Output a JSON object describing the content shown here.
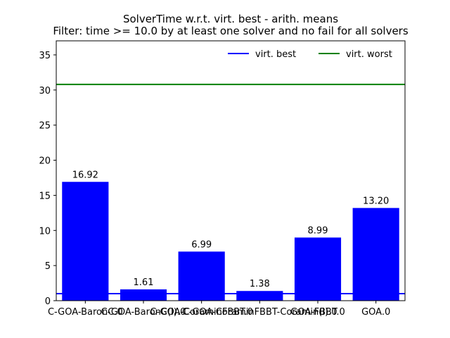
{
  "chart_data": {
    "type": "bar",
    "title_line1": "SolverTime w.r.t. virt. best - arith. means",
    "title_line2": "Filter: time >= 10.0 by at least one solver and no fail for all solvers",
    "xlabel": "",
    "ylabel": "",
    "categories": [
      "C-GOA-BaronC.0",
      "C-GOA-BaronC(I).0",
      "C-GOA-CoraminFBBT.0",
      "C-GOA-CoraminFBBT-Coramin(I).0",
      "GOA-FBBT.0",
      "GOA.0"
    ],
    "values": [
      16.92,
      1.61,
      6.99,
      1.38,
      8.99,
      13.2
    ],
    "value_labels": [
      "16.92",
      "1.61",
      "6.99",
      "1.38",
      "8.99",
      "13.20"
    ],
    "ylim": [
      0,
      37
    ],
    "yticks": [
      0,
      5,
      10,
      15,
      20,
      25,
      30,
      35
    ],
    "bar_color": "#0000ff",
    "reference_lines": [
      {
        "name": "virt. best",
        "value": 1.0,
        "color": "#0000ff"
      },
      {
        "name": "virt. worst",
        "value": 30.8,
        "color": "#008000"
      }
    ],
    "legend_position": "top-right",
    "grid": false
  }
}
